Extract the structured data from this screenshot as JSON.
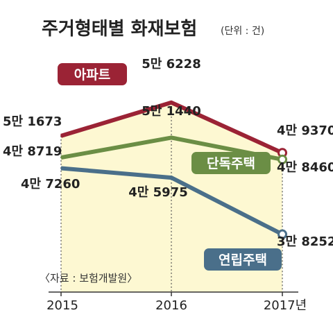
{
  "chart_data": {
    "type": "line",
    "title": "주거형태별 화재보험",
    "unit": "(단위 : 건)",
    "x": [
      "2015",
      "2016",
      "2017년"
    ],
    "ylim": [
      35000,
      60000
    ],
    "series": [
      {
        "name": "아파트",
        "values": [
          51673,
          56228,
          49370
        ],
        "labels": [
          "5만 1673",
          "5만 6228",
          "4만 9370"
        ],
        "color": "#9b2335"
      },
      {
        "name": "단독주택",
        "values": [
          48719,
          51440,
          48460
        ],
        "labels": [
          "4만 8719",
          "5만 1440",
          "4만 8460"
        ],
        "color": "#6b8e45"
      },
      {
        "name": "연립주택",
        "values": [
          47260,
          45975,
          38252
        ],
        "labels": [
          "4만 7260",
          "4만 5975",
          "3만 8252"
        ],
        "color": "#4a6f8a"
      }
    ],
    "source": "〈자료 : 보험개발원〉",
    "colors": {
      "fill": "#fdf8d2",
      "axis": "#333333"
    }
  }
}
